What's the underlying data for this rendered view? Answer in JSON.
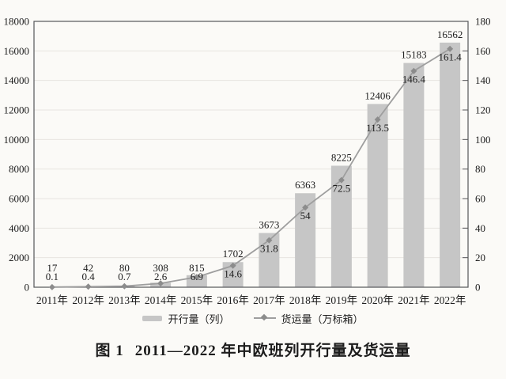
{
  "page": {
    "background": "#fbfaf7"
  },
  "chart_data": {
    "type": "bar+line",
    "categories": [
      "2011年",
      "2012年",
      "2013年",
      "2014年",
      "2015年",
      "2016年",
      "2017年",
      "2018年",
      "2019年",
      "2020年",
      "2021年",
      "2022年"
    ],
    "series": [
      {
        "name": "开行量（列）",
        "type": "bar",
        "axis": "left",
        "values": [
          17,
          42,
          80,
          308,
          815,
          1702,
          3673,
          6363,
          8225,
          12406,
          15183,
          16562
        ]
      },
      {
        "name": "货运量（万标箱）",
        "type": "line",
        "axis": "right",
        "values": [
          0.1,
          0.4,
          0.7,
          2.6,
          6.9,
          14.6,
          31.8,
          54,
          72.5,
          113.5,
          146.4,
          161.4
        ]
      }
    ],
    "left_axis": {
      "min": 0,
      "max": 18000,
      "step": 2000
    },
    "right_axis": {
      "min": 0,
      "max": 180,
      "step": 20
    },
    "grid": true,
    "legend_position": "bottom",
    "colors": {
      "bar": "#c6c6c6",
      "line": "#9e9e9e",
      "marker": "#8c8c8c",
      "grid": "#e7e4e0",
      "border": "#55565a",
      "text": "#1c1c1c"
    }
  },
  "caption": {
    "label": "图 1",
    "title": "2011—2022 年中欧班列开行量及货运量"
  }
}
